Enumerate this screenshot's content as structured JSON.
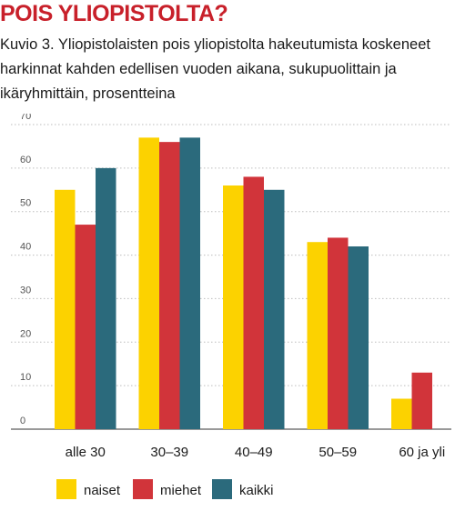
{
  "header": {
    "title": "POIS YLIOPISTOLTA?",
    "subtitle": "Kuvio 3. Yliopistolaisten pois yliopistolta hakeutumista koskeneet harkinnat kahden edellisen vuoden aikana, sukupuolittain ja ikäryhmittäin, prosentteina"
  },
  "chart_data": {
    "type": "bar",
    "title": "POIS YLIOPISTOLTA?",
    "subtitle": "Kuvio 3. Yliopistolaisten pois yliopistolta hakeutumista koskeneet harkinnat kahden edellisen vuoden aikana, sukupuolittain ja ikäryhmittäin, prosentteina",
    "xlabel": "",
    "ylabel": "",
    "categories": [
      "alle 30",
      "30–39",
      "40–49",
      "50–59",
      "60 ja yli"
    ],
    "series": [
      {
        "name": "naiset",
        "color": "#fcd200",
        "values": [
          55,
          67,
          56,
          43,
          7
        ]
      },
      {
        "name": "miehet",
        "color": "#d1343a",
        "values": [
          47,
          66,
          58,
          44,
          13
        ]
      },
      {
        "name": "kaikki",
        "color": "#2b6a7c",
        "values": [
          60,
          67,
          55,
          42,
          null
        ]
      }
    ],
    "ylim": [
      0,
      70
    ],
    "yticks": [
      "0",
      "10",
      "20",
      "30",
      "40",
      "50",
      "60",
      "70"
    ],
    "grid": true,
    "legend": "bottom"
  }
}
